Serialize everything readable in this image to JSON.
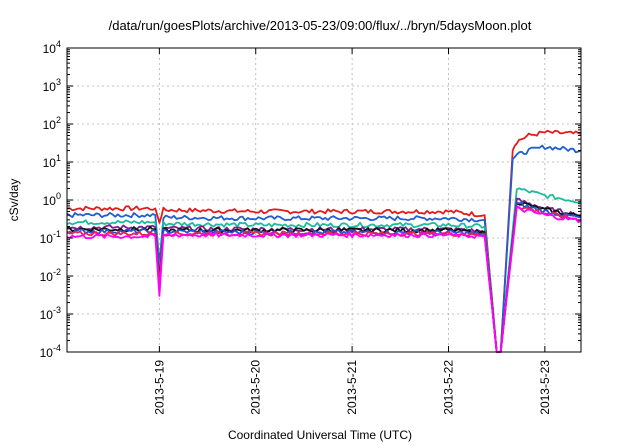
{
  "chart_data": {
    "type": "line",
    "title": "/data/run/goesPlots/archive/2013-05-23/09:00/flux/../bryn/5daysMoon.plot",
    "xlabel": "Coordinated Universal Time (UTC)",
    "ylabel": "cSv/day",
    "yscale": "log",
    "ylim": [
      0.0001,
      10000
    ],
    "xlim": [
      "2013-05-18 01:00",
      "2013-05-23 09:00"
    ],
    "grid": true,
    "legend": "none",
    "x_ticks": [
      "2013-5-19",
      "2013-5-20",
      "2013-5-21",
      "2013-5-22",
      "2013-5-23"
    ],
    "y_ticks": [
      {
        "base": "10",
        "exp": "-4"
      },
      {
        "base": "10",
        "exp": "-3"
      },
      {
        "base": "10",
        "exp": "-2"
      },
      {
        "base": "10",
        "exp": "-1"
      },
      {
        "base": "10",
        "exp": "0"
      },
      {
        "base": "10",
        "exp": "1"
      },
      {
        "base": "10",
        "exp": "2"
      },
      {
        "base": "10",
        "exp": "3"
      },
      {
        "base": "10",
        "exp": "4"
      }
    ],
    "series": [
      {
        "color": "#e41a1c",
        "x": [
          "2013-05-18 01:00",
          "2013-05-18 23:00",
          "2013-05-19 00:00",
          "2013-05-19 01:00",
          "2013-05-20 00:00",
          "2013-05-21 00:00",
          "2013-05-22 00:00",
          "2013-05-22 09:00",
          "2013-05-22 12:00",
          "2013-05-22 13:00",
          "2013-05-22 16:00",
          "2013-05-22 17:00",
          "2013-05-22 20:00",
          "2013-05-23 00:00",
          "2013-05-23 09:00"
        ],
        "values": [
          0.6,
          0.6,
          0.25,
          0.55,
          0.5,
          0.5,
          0.5,
          0.4,
          0.0001,
          0.0001,
          20,
          35,
          50,
          60,
          55
        ]
      },
      {
        "color": "#1f5fd0",
        "x": [
          "2013-05-18 01:00",
          "2013-05-18 23:00",
          "2013-05-19 00:00",
          "2013-05-19 01:00",
          "2013-05-20 00:00",
          "2013-05-21 00:00",
          "2013-05-22 00:00",
          "2013-05-22 09:00",
          "2013-05-22 12:00",
          "2013-05-22 13:00",
          "2013-05-22 16:00",
          "2013-05-22 17:00",
          "2013-05-22 20:00",
          "2013-05-23 00:00",
          "2013-05-23 09:00"
        ],
        "values": [
          0.4,
          0.4,
          0.02,
          0.35,
          0.33,
          0.33,
          0.33,
          0.3,
          0.0001,
          0.0001,
          12,
          15,
          20,
          25,
          20
        ]
      },
      {
        "color": "#1abc9c",
        "x": [
          "2013-05-18 01:00",
          "2013-05-18 23:00",
          "2013-05-19 00:00",
          "2013-05-19 01:00",
          "2013-05-20 00:00",
          "2013-05-21 00:00",
          "2013-05-22 00:00",
          "2013-05-22 09:00",
          "2013-05-22 12:00",
          "2013-05-22 13:00",
          "2013-05-22 17:00",
          "2013-05-23 00:00",
          "2013-05-23 09:00"
        ],
        "values": [
          0.26,
          0.26,
          0.01,
          0.24,
          0.22,
          0.22,
          0.22,
          0.2,
          0.0001,
          0.0001,
          2.0,
          1.3,
          0.9
        ]
      },
      {
        "color": "#7f1f8f",
        "x": [
          "2013-05-18 01:00",
          "2013-05-18 23:00",
          "2013-05-19 00:00",
          "2013-05-19 01:00",
          "2013-05-20 00:00",
          "2013-05-21 00:00",
          "2013-05-22 00:00",
          "2013-05-22 09:00",
          "2013-05-22 12:00",
          "2013-05-22 13:00",
          "2013-05-22 17:00",
          "2013-05-23 00:00",
          "2013-05-23 09:00"
        ],
        "values": [
          0.19,
          0.19,
          0.008,
          0.18,
          0.17,
          0.17,
          0.17,
          0.15,
          0.0001,
          0.0001,
          1.0,
          0.6,
          0.4
        ]
      },
      {
        "color": "#111111",
        "x": [
          "2013-05-18 01:00",
          "2013-05-18 23:00",
          "2013-05-19 00:00",
          "2013-05-19 01:00",
          "2013-05-20 00:00",
          "2013-05-21 00:00",
          "2013-05-22 00:00",
          "2013-05-22 09:00",
          "2013-05-22 12:00",
          "2013-05-22 13:00",
          "2013-05-22 17:00",
          "2013-05-23 00:00",
          "2013-05-23 09:00"
        ],
        "values": [
          0.17,
          0.17,
          0.007,
          0.16,
          0.16,
          0.16,
          0.16,
          0.14,
          0.0001,
          0.0001,
          0.9,
          0.55,
          0.38
        ]
      },
      {
        "color": "#2255cc",
        "x": [
          "2013-05-18 01:00",
          "2013-05-18 23:00",
          "2013-05-19 00:00",
          "2013-05-19 01:00",
          "2013-05-20 00:00",
          "2013-05-21 00:00",
          "2013-05-22 00:00",
          "2013-05-22 09:00",
          "2013-05-22 12:00",
          "2013-05-22 13:00",
          "2013-05-22 17:00",
          "2013-05-23 00:00",
          "2013-05-23 09:00"
        ],
        "values": [
          0.15,
          0.15,
          0.006,
          0.15,
          0.14,
          0.14,
          0.14,
          0.13,
          0.0001,
          0.0001,
          0.8,
          0.5,
          0.34
        ]
      },
      {
        "color": "#f02050",
        "x": [
          "2013-05-18 01:00",
          "2013-05-18 23:00",
          "2013-05-19 00:00",
          "2013-05-19 01:00",
          "2013-05-20 00:00",
          "2013-05-21 00:00",
          "2013-05-22 00:00",
          "2013-05-22 09:00",
          "2013-05-22 12:00",
          "2013-05-22 13:00",
          "2013-05-22 17:00",
          "2013-05-23 00:00",
          "2013-05-23 09:00"
        ],
        "values": [
          0.13,
          0.13,
          0.005,
          0.13,
          0.13,
          0.13,
          0.13,
          0.12,
          0.0001,
          0.0001,
          0.7,
          0.45,
          0.3
        ]
      },
      {
        "color": "#ff00ff",
        "x": [
          "2013-05-18 01:00",
          "2013-05-18 23:00",
          "2013-05-19 00:00",
          "2013-05-19 01:00",
          "2013-05-20 00:00",
          "2013-05-21 00:00",
          "2013-05-22 00:00",
          "2013-05-22 09:00",
          "2013-05-22 12:00",
          "2013-05-22 13:00",
          "2013-05-22 17:00",
          "2013-05-23 00:00",
          "2013-05-23 09:00"
        ],
        "values": [
          0.11,
          0.11,
          0.003,
          0.12,
          0.12,
          0.12,
          0.12,
          0.11,
          0.0001,
          0.0001,
          0.6,
          0.4,
          0.28
        ]
      }
    ]
  }
}
